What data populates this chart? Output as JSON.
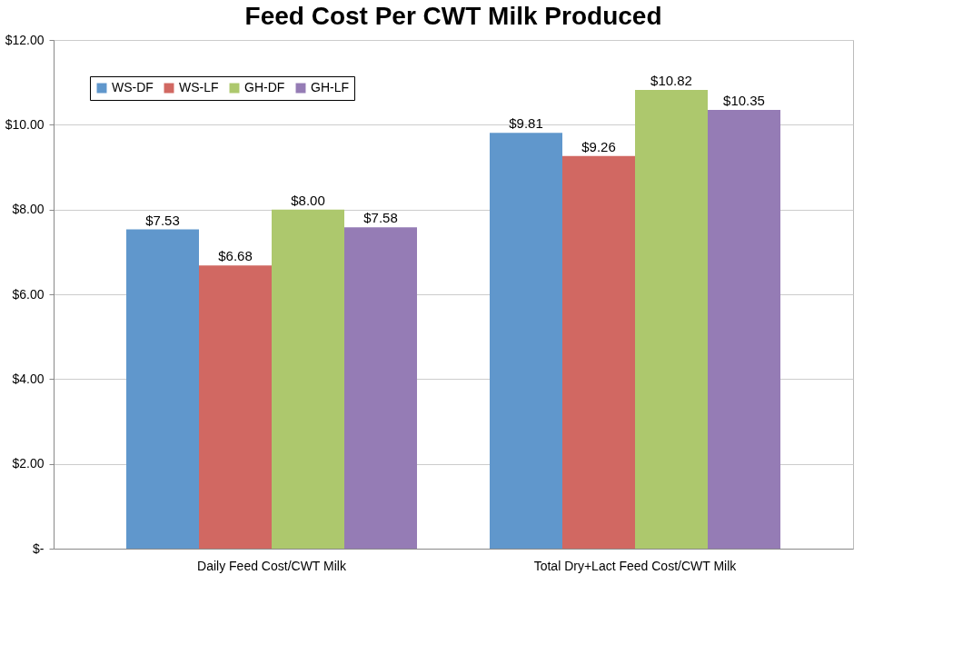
{
  "chart_data": {
    "type": "bar",
    "title": "Feed Cost Per CWT Milk Produced",
    "categories": [
      "Daily Feed Cost/CWT Milk",
      "Total Dry+Lact Feed Cost/CWT Milk"
    ],
    "series": [
      {
        "name": "WS-DF",
        "color": "#6097cc",
        "values": [
          7.53,
          9.81
        ],
        "value_labels": [
          "$7.53",
          "$9.81"
        ]
      },
      {
        "name": "WS-LF",
        "color": "#d16862",
        "values": [
          6.68,
          9.26
        ],
        "value_labels": [
          "$6.68",
          "$9.26"
        ]
      },
      {
        "name": "GH-DF",
        "color": "#adc86d",
        "values": [
          8.0,
          10.82
        ],
        "value_labels": [
          "$8.00",
          "$10.82"
        ]
      },
      {
        "name": "GH-LF",
        "color": "#957cb5",
        "values": [
          7.58,
          10.35
        ],
        "value_labels": [
          "$7.58",
          "$10.35"
        ]
      }
    ],
    "ylim": [
      0,
      12
    ],
    "yticks": [
      {
        "value": 0,
        "label": "$-"
      },
      {
        "value": 2,
        "label": "$2.00"
      },
      {
        "value": 4,
        "label": "$4.00"
      },
      {
        "value": 6,
        "label": "$6.00"
      },
      {
        "value": 8,
        "label": "$8.00"
      },
      {
        "value": 10,
        "label": "$10.00"
      },
      {
        "value": 12,
        "label": "$12.00"
      }
    ],
    "grid": "y",
    "legend": "top left"
  }
}
